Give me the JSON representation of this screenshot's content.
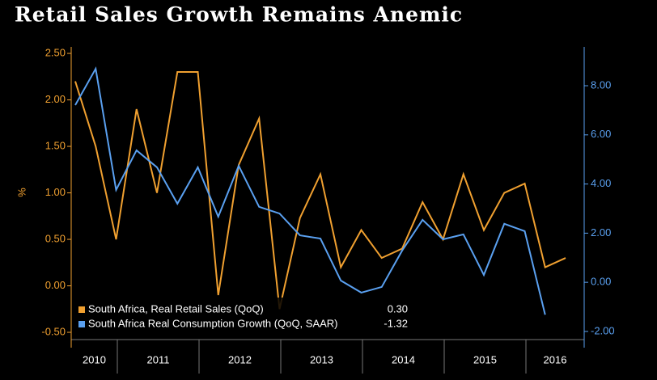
{
  "chart_data": {
    "type": "line",
    "title": "Retail Sales Growth Remains Anemic",
    "ylabel": "%",
    "categories": [
      null,
      null,
      null,
      null,
      null,
      null,
      null,
      null,
      null,
      null,
      null,
      null,
      null,
      null,
      null,
      null,
      null,
      null,
      null,
      null,
      null,
      null,
      null,
      null,
      null
    ],
    "year_labels": [
      "2010",
      "2011",
      "2012",
      "2013",
      "2014",
      "2015",
      "2016"
    ],
    "series": [
      {
        "name": "South Africa, Real Retail Sales (QoQ)",
        "color": "#f0a030",
        "last_value_label": "0.30",
        "values": [
          2.2,
          1.5,
          0.5,
          1.9,
          1.0,
          2.3,
          2.3,
          -0.1,
          1.3,
          1.8,
          -0.25,
          0.73,
          1.2,
          0.2,
          0.6,
          0.3,
          0.4,
          0.9,
          0.5,
          1.2,
          0.6,
          1.0,
          1.1,
          0.2,
          0.3
        ]
      },
      {
        "name": "South Africa Real Consumption Growth (QoQ, SAAR)",
        "color": "#5aa0f0",
        "axis": "y2",
        "last_value_label": "-1.32",
        "values": [
          7.21,
          8.69,
          3.76,
          5.37,
          4.68,
          3.2,
          4.68,
          2.67,
          4.74,
          3.07,
          2.8,
          1.91,
          1.78,
          0.07,
          -0.42,
          -0.19,
          1.29,
          2.54,
          1.75,
          1.95,
          0.3,
          2.38,
          2.08,
          -1.32,
          null
        ]
      }
    ],
    "ylim": [
      -0.665,
      2.57
    ],
    "yticks": [
      {
        "value": 2.5,
        "label": "2.50"
      },
      {
        "value": 2.0,
        "label": "2.00"
      },
      {
        "value": 1.5,
        "label": "1.50"
      },
      {
        "value": 1.0,
        "label": "1.00"
      },
      {
        "value": 0.5,
        "label": "0.50"
      },
      {
        "value": 0,
        "label": "0.00"
      },
      {
        "value": -0.5,
        "label": "-0.50"
      }
    ],
    "y2lim": [
      -2.66,
      9.58
    ],
    "y2ticks": [
      {
        "value": 8,
        "label": "8.00"
      },
      {
        "value": 6,
        "label": "6.00"
      },
      {
        "value": 4,
        "label": "4.00"
      },
      {
        "value": 2,
        "label": "2.00"
      },
      {
        "value": 0,
        "label": "0.00"
      },
      {
        "value": -2,
        "label": "-2.00"
      }
    ]
  }
}
